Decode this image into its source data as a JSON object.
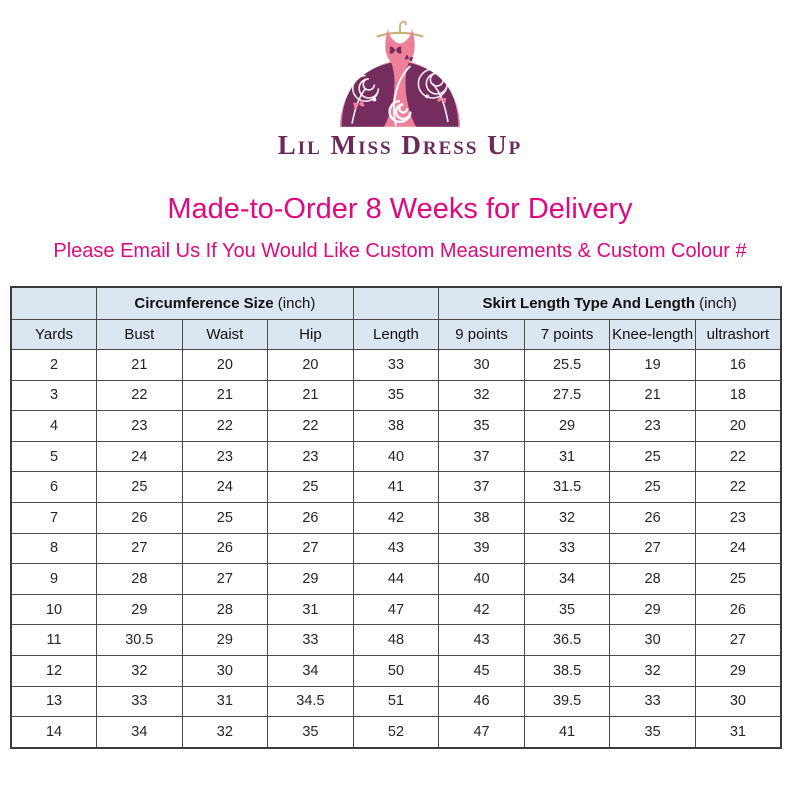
{
  "logo": {
    "brand_text": "Lil Miss Dress Up",
    "colors": {
      "dress_pink": "#ef8099",
      "dress_plum": "#752c5f",
      "hanger_gold": "#c8b077",
      "brand_text_color": "#6b2a5c"
    }
  },
  "headline": {
    "text": "Made-to-Order 8 Weeks for Delivery"
  },
  "subheadline": {
    "text": "Please Email Us If You Would Like Custom Measurements & Custom Colour #"
  },
  "accent_color": "#e0097f",
  "chart_data": {
    "type": "table",
    "title": "Size chart",
    "group_headers": [
      {
        "label": "",
        "colspan": 1
      },
      {
        "label_bold": "Circumference Size",
        "label_normal": " (inch)",
        "colspan": 3
      },
      {
        "label": "",
        "colspan": 1
      },
      {
        "label_bold": "Skirt Length Type And Length",
        "label_normal": " (inch)",
        "colspan": 4
      }
    ],
    "columns": [
      "Yards",
      "Bust",
      "Waist",
      "Hip",
      "Length",
      "9 points",
      "7 points",
      "Knee-length",
      "ultrashort"
    ],
    "rows": [
      [
        "2",
        "21",
        "20",
        "20",
        "33",
        "30",
        "25.5",
        "19",
        "16"
      ],
      [
        "3",
        "22",
        "21",
        "21",
        "35",
        "32",
        "27.5",
        "21",
        "18"
      ],
      [
        "4",
        "23",
        "22",
        "22",
        "38",
        "35",
        "29",
        "23",
        "20"
      ],
      [
        "5",
        "24",
        "23",
        "23",
        "40",
        "37",
        "31",
        "25",
        "22"
      ],
      [
        "6",
        "25",
        "24",
        "25",
        "41",
        "37",
        "31.5",
        "25",
        "22"
      ],
      [
        "7",
        "26",
        "25",
        "26",
        "42",
        "38",
        "32",
        "26",
        "23"
      ],
      [
        "8",
        "27",
        "26",
        "27",
        "43",
        "39",
        "33",
        "27",
        "24"
      ],
      [
        "9",
        "28",
        "27",
        "29",
        "44",
        "40",
        "34",
        "28",
        "25"
      ],
      [
        "10",
        "29",
        "28",
        "31",
        "47",
        "42",
        "35",
        "29",
        "26"
      ],
      [
        "11",
        "30.5",
        "29",
        "33",
        "48",
        "43",
        "36.5",
        "30",
        "27"
      ],
      [
        "12",
        "32",
        "30",
        "34",
        "50",
        "45",
        "38.5",
        "32",
        "29"
      ],
      [
        "13",
        "33",
        "31",
        "34.5",
        "51",
        "46",
        "39.5",
        "33",
        "30"
      ],
      [
        "14",
        "34",
        "32",
        "35",
        "52",
        "47",
        "41",
        "35",
        "31"
      ]
    ],
    "style": {
      "header_bg": "#dce6f1",
      "border_color": "#4a4a4a",
      "body_bg": "#ffffff"
    }
  }
}
